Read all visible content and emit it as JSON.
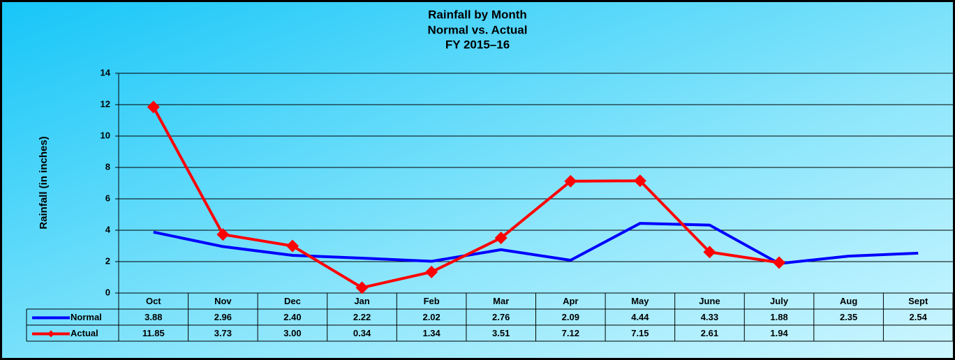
{
  "chart_data": {
    "type": "line",
    "title": [
      "Rainfall by Month",
      "Normal vs. Actual",
      "FY 2015–16"
    ],
    "y_label": "Rainfall  (in inches)",
    "categories": [
      "Oct",
      "Nov",
      "Dec",
      "Jan",
      "Feb",
      "Mar",
      "Apr",
      "May",
      "June",
      "July",
      "Aug",
      "Sept"
    ],
    "series": [
      {
        "name": "Normal",
        "color": "#0000ff",
        "marker": "none",
        "values": [
          3.88,
          2.96,
          2.4,
          2.22,
          2.02,
          2.76,
          2.09,
          4.44,
          4.33,
          1.88,
          2.35,
          2.54
        ],
        "value_labels": [
          "3.88",
          "2.96",
          "2.40",
          "2.22",
          "2.02",
          "2.76",
          "2.09",
          "4.44",
          "4.33",
          "1.88",
          "2.35",
          "2.54"
        ]
      },
      {
        "name": "Actual",
        "color": "#ff0000",
        "marker": "diamond",
        "values": [
          11.85,
          3.73,
          3.0,
          0.34,
          1.34,
          3.51,
          7.12,
          7.15,
          2.61,
          1.94,
          null,
          null
        ],
        "value_labels": [
          "11.85",
          "3.73",
          "3.00",
          "0.34",
          "1.34",
          "3.51",
          "7.12",
          "7.15",
          "2.61",
          "1.94",
          null,
          null
        ]
      }
    ],
    "ylim": [
      0,
      14
    ],
    "yticks": [
      0,
      2,
      4,
      6,
      8,
      10,
      12,
      14
    ],
    "grid": true,
    "data_table": true
  }
}
